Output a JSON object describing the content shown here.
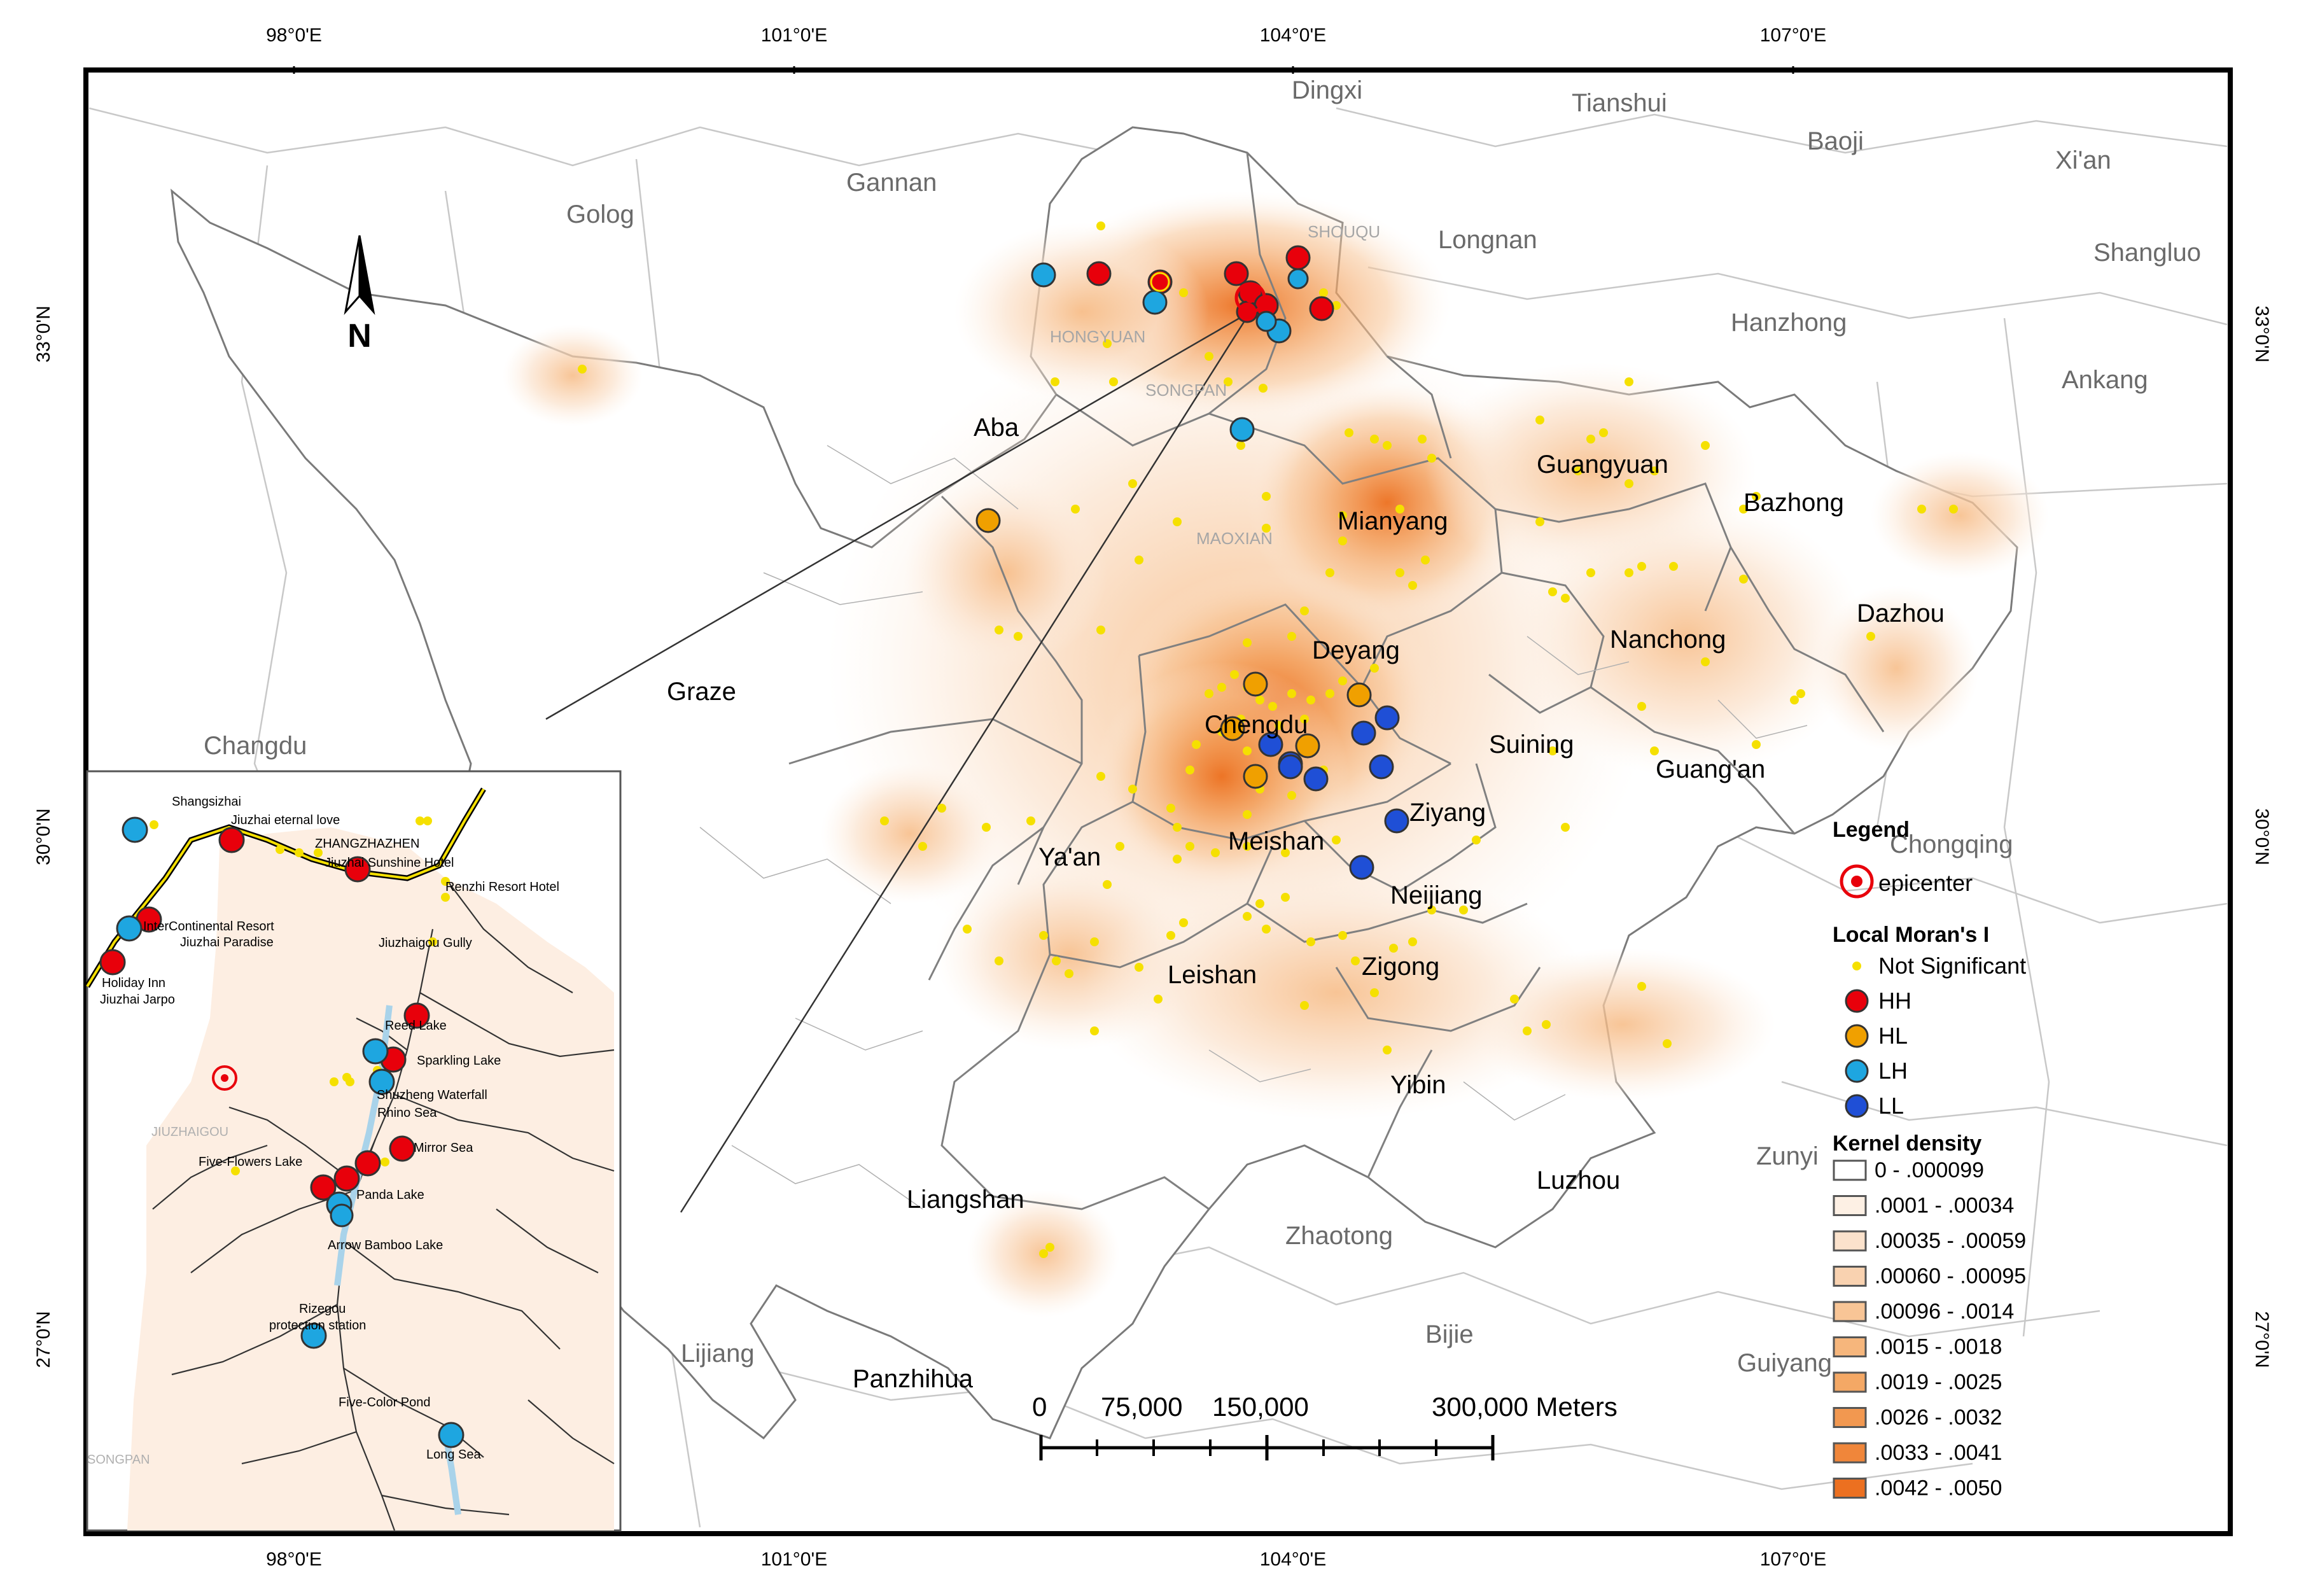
{
  "axes": {
    "top_ticks": [
      "98°0'E",
      "101°0'E",
      "104°0'E",
      "107°0'E"
    ],
    "bottom_ticks": [
      "98°0'E",
      "101°0'E",
      "104°0'E",
      "107°0'E"
    ],
    "left_ticks": [
      "33°0'N",
      "30°0'N",
      "27°0'N"
    ],
    "right_ticks": [
      "33°0'N",
      "30°0'N",
      "27°0'N"
    ]
  },
  "north_arrow": {
    "label": "N"
  },
  "outer_places": [
    "Dingxi",
    "Tianshui",
    "Gannan",
    "Golog",
    "Baoji",
    "Xi'an",
    "Longnan",
    "Shangluo",
    "Hanzhong",
    "Ankang",
    "Changdu",
    "Chongqing",
    "Zunyi",
    "Zhaotong",
    "Bijie",
    "Guiyang",
    "Lijiang"
  ],
  "sichuan_places": [
    "Aba",
    "Graze",
    "Mianyang",
    "Guangyuan",
    "Bazhong",
    "Dazhou",
    "Nanchong",
    "Deyang",
    "Chengdu",
    "Suining",
    "Guang'an",
    "Ziyang",
    "Ya'an",
    "Meishan",
    "Neijiang",
    "Leishan",
    "Zigong",
    "Yibin",
    "Luzhou",
    "Liangshan",
    "Panzhihua"
  ],
  "county_places": [
    "SHOUQU",
    "HONGYUAN",
    "SONGPAN",
    "MAOXIAN"
  ],
  "inset": {
    "labels": [
      "Shangsizhai",
      "Jiuzhai eternal love",
      "ZHANGZHAZHEN",
      "Jiuzhai Sunshine Hotel",
      "Renzhi Resort Hotel",
      "InterContinental Resort",
      "Jiuzhai Paradise",
      "Jiuzhaigou Gully",
      "Holiday Inn",
      "Jiuzhai Jarpo",
      "Reed Lake",
      "Sparkling Lake",
      "Shuzheng Waterfall",
      "Rhino Sea",
      "JIUZHAIGOU",
      "Mirror Sea",
      "Five-Flowers Lake",
      "Panda Lake",
      "Arrow Bamboo Lake",
      "Rizegou",
      "protection station",
      "Five-Color Pond",
      "Long Sea",
      "SONGPAN"
    ]
  },
  "scale_bar": {
    "labels": [
      "0",
      "75,000",
      "150,000",
      "300,000 Meters"
    ]
  },
  "legend": {
    "title": "Legend",
    "epicenter_label": "epicenter",
    "morans_title": "Local Moran's I",
    "morans_items": [
      {
        "label": "Not Significant",
        "color": "#f5e000"
      },
      {
        "label": "HH",
        "color": "#e8000b"
      },
      {
        "label": "HL",
        "color": "#f0a000"
      },
      {
        "label": "LH",
        "color": "#1ea6e0"
      },
      {
        "label": "LL",
        "color": "#1f4fd6"
      }
    ],
    "kernel_title": "Kernel density",
    "kernel_items": [
      {
        "label": "0 - .000099",
        "color": "#ffffff"
      },
      {
        "label": ".0001 - .00034",
        "color": "#fdf0e4"
      },
      {
        "label": ".00035 - .00059",
        "color": "#fbe2cc"
      },
      {
        "label": ".00060 - .00095",
        "color": "#f9d2b0"
      },
      {
        "label": ".00096 - .0014",
        "color": "#f8c596"
      },
      {
        "label": ".0015 - .0018",
        "color": "#f6b67c"
      },
      {
        "label": ".0019 - .0025",
        "color": "#f4a865"
      },
      {
        "label": ".0026 - .0032",
        "color": "#f29850"
      },
      {
        "label": ".0033 - .0041",
        "color": "#f0863a"
      },
      {
        "label": ".0042 - .0050",
        "color": "#ec7020"
      }
    ]
  }
}
